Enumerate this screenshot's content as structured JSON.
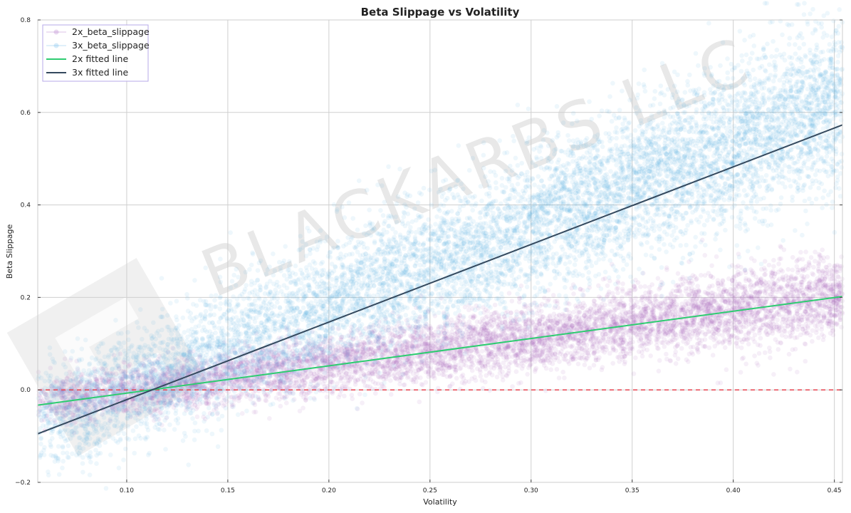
{
  "chart_data": {
    "type": "scatter",
    "title": "Beta Slippage vs Volatility",
    "xlabel": "Volatility",
    "ylabel": "Beta Slippage",
    "xlim": [
      0.056,
      0.454
    ],
    "ylim": [
      -0.2,
      0.8
    ],
    "x_ticks": [
      0.1,
      0.15,
      0.2,
      0.25,
      0.3,
      0.35,
      0.4,
      0.45
    ],
    "x_tick_labels": [
      "0.10",
      "0.15",
      "0.20",
      "0.25",
      "0.30",
      "0.35",
      "0.40",
      "0.45"
    ],
    "y_ticks": [
      -0.2,
      0.0,
      0.2,
      0.4,
      0.6,
      0.8
    ],
    "y_tick_labels": [
      "−0.2",
      "0.0",
      "0.2",
      "0.4",
      "0.6",
      "0.8"
    ],
    "grid": true,
    "legend_position": "top-left",
    "watermark": "BLACKARBS LLC",
    "reference_line": {
      "y": 0.0,
      "style": "dashed",
      "color": "#e8434f"
    },
    "series": [
      {
        "name": "2x_beta_slippage",
        "kind": "scatter",
        "color": "#a55fbf",
        "x_range": [
          0.056,
          0.454
        ],
        "band": {
          "center_at_x_min": -0.028,
          "center_at_x_max": 0.205,
          "spread": 0.035
        },
        "approx_points": 7000
      },
      {
        "name": "3x_beta_slippage",
        "kind": "scatter",
        "color": "#5aaee6",
        "x_range": [
          0.056,
          0.454
        ],
        "band": {
          "center_at_x_min": -0.075,
          "center_at_x_max": 0.625,
          "spread": 0.075
        },
        "approx_points": 9000
      },
      {
        "name": "2x fitted line",
        "kind": "line",
        "color": "#2ecc71",
        "x": [
          0.056,
          0.454
        ],
        "y": [
          -0.033,
          0.202
        ]
      },
      {
        "name": "3x fitted line",
        "kind": "line",
        "color": "#34495e",
        "x": [
          0.056,
          0.454
        ],
        "y": [
          -0.095,
          0.573
        ]
      }
    ]
  }
}
